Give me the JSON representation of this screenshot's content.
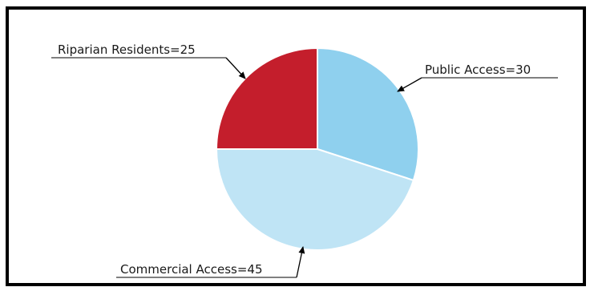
{
  "chart_data": {
    "type": "pie",
    "title": "",
    "slices": [
      {
        "label": "Public Access=30",
        "category": "Public Access",
        "value": 30,
        "color": "#8fd0ee"
      },
      {
        "label": "Commercial Access=45",
        "category": "Commercial Access",
        "value": 45,
        "color": "#bfe4f5"
      },
      {
        "label": "Riparian Residents=25",
        "category": "Riparian Residents",
        "value": 25,
        "color": "#c41e2c"
      }
    ],
    "start_angle_deg": 0,
    "direction": "clockwise",
    "legend": "none",
    "labels_with_leader_arrows": true
  }
}
